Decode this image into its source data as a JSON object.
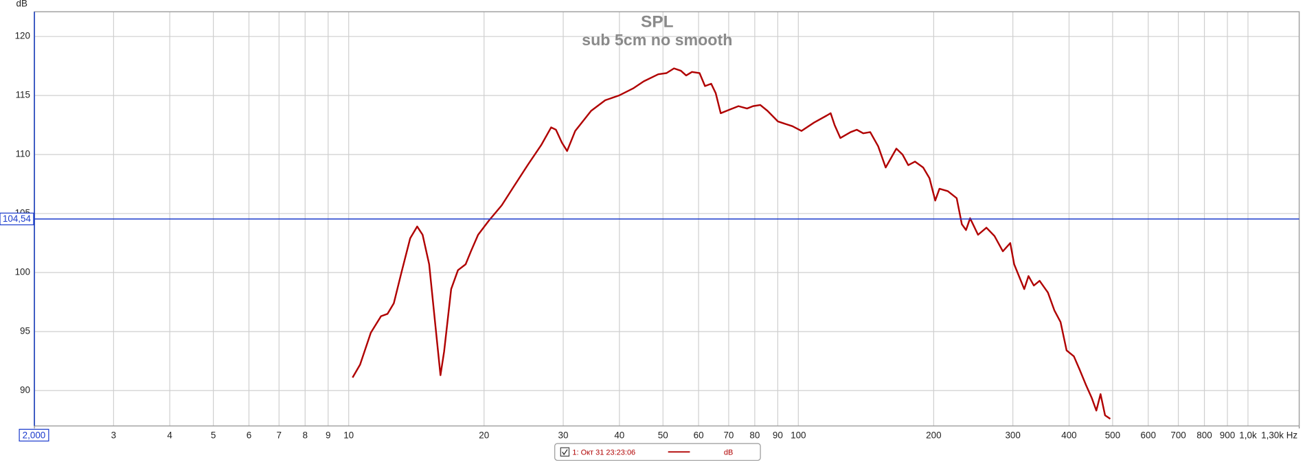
{
  "chart_data": {
    "type": "line",
    "title": "SPL",
    "subtitle": "sub 5cm no smooth",
    "y_label": "dB",
    "log_x": true,
    "grid": true,
    "xlim": [
      2,
      1300
    ],
    "ylim": [
      87,
      122.1
    ],
    "xticks": [
      {
        "value": 2,
        "label": "2,000"
      },
      3,
      4,
      5,
      6,
      7,
      8,
      9,
      10,
      20,
      30,
      40,
      50,
      60,
      70,
      80,
      90,
      100,
      200,
      300,
      400,
      500,
      600,
      700,
      800,
      900,
      {
        "value": 1000,
        "label": "1,0k"
      },
      {
        "value": 1300,
        "label": "1,30k Hz"
      }
    ],
    "yticks": [
      90,
      95,
      100,
      105,
      110,
      115,
      120
    ],
    "cursor": {
      "value": 104.54,
      "label": "104,54"
    },
    "legend_unit": "dB",
    "series": [
      {
        "name": "1: Окт 31 23:23:06",
        "color": "#b00000",
        "x": [
          10.2,
          10.6,
          11.2,
          11.8,
          12.2,
          12.6,
          13.1,
          13.7,
          14.2,
          14.6,
          15.1,
          15.6,
          16.0,
          16.3,
          16.9,
          17.5,
          18.2,
          18.7,
          19.4,
          20.5,
          21.9,
          23.3,
          25.1,
          26.8,
          28.2,
          28.9,
          29.8,
          30.6,
          31.9,
          34.6,
          37.2,
          39.9,
          42.9,
          45.3,
          48.8,
          50.9,
          52.9,
          54.8,
          56.3,
          58.0,
          60.3,
          62.0,
          64.0,
          65.5,
          67.2,
          70.3,
          73.6,
          76.9,
          79.3,
          82.3,
          85.4,
          90.1,
          97.0,
          101.6,
          108.3,
          115.6,
          118.0,
          120.4,
          124.0,
          130.7,
          134.9,
          139.4,
          144.5,
          150.5,
          156.4,
          165.2,
          170.5,
          175.6,
          181.7,
          189.5,
          195.7,
          201.6,
          206,
          215,
          225,
          231,
          236,
          241,
          251,
          262,
          273,
          285,
          296,
          302,
          318,
          325,
          334,
          344,
          359,
          371,
          383,
          395,
          410,
          422,
          437,
          449,
          460,
          470,
          481,
          494
        ],
        "values": [
          91.1,
          92.2,
          94.9,
          96.3,
          96.5,
          97.4,
          100.0,
          102.9,
          103.9,
          103.2,
          100.7,
          95.4,
          91.3,
          93.3,
          98.6,
          100.2,
          100.7,
          101.8,
          103.2,
          104.4,
          105.7,
          107.3,
          109.2,
          110.8,
          112.3,
          112.1,
          111.0,
          110.3,
          112.0,
          113.7,
          114.6,
          115.0,
          115.6,
          116.2,
          116.8,
          116.9,
          117.3,
          117.1,
          116.7,
          117.0,
          116.9,
          115.8,
          116.0,
          115.2,
          113.5,
          113.8,
          114.1,
          113.9,
          114.1,
          114.2,
          113.7,
          112.8,
          112.4,
          112.0,
          112.7,
          113.3,
          113.5,
          112.5,
          111.4,
          111.9,
          112.1,
          111.8,
          111.9,
          110.7,
          108.9,
          110.5,
          110.0,
          109.1,
          109.4,
          108.9,
          108.0,
          106.1,
          107.1,
          106.9,
          106.3,
          104.1,
          103.6,
          104.6,
          103.2,
          103.8,
          103.1,
          101.8,
          102.5,
          100.7,
          98.6,
          99.7,
          98.9,
          99.3,
          98.3,
          96.8,
          95.8,
          93.4,
          92.9,
          91.8,
          90.4,
          89.4,
          88.3,
          89.7,
          87.9,
          87.6
        ]
      }
    ]
  }
}
